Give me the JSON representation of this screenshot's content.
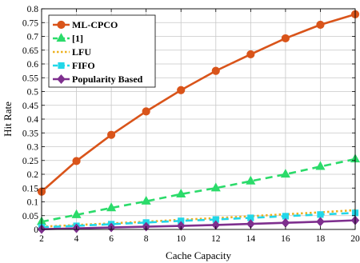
{
  "chart_data": {
    "type": "line",
    "xlabel": "Cache Capacity",
    "ylabel": "Hit Rate",
    "x": [
      2,
      4,
      6,
      8,
      10,
      12,
      14,
      16,
      18,
      20
    ],
    "xlim": [
      2,
      20
    ],
    "ylim": [
      0,
      0.8
    ],
    "xticks": [
      "2",
      "4",
      "6",
      "8",
      "10",
      "12",
      "14",
      "16",
      "18",
      "20"
    ],
    "yticks": [
      "0",
      "0.05",
      "0.1",
      "0.15",
      "0.2",
      "0.25",
      "0.3",
      "0.35",
      "0.4",
      "0.45",
      "0.5",
      "0.55",
      "0.6",
      "0.65",
      "0.7",
      "0.75",
      "0.8"
    ],
    "grid": true,
    "legend_position": "top-left",
    "series": [
      {
        "name": "ML-CPCO",
        "color": "#D9541A",
        "dash": "solid",
        "marker": "circle",
        "values": [
          0.137,
          0.248,
          0.343,
          0.428,
          0.505,
          0.575,
          0.635,
          0.693,
          0.742,
          0.78
        ]
      },
      {
        "name": "[1]",
        "color": "#2BDB6A",
        "dash": "dashed",
        "marker": "triangle",
        "values": [
          0.028,
          0.053,
          0.078,
          0.102,
          0.128,
          0.15,
          0.175,
          0.2,
          0.228,
          0.255
        ]
      },
      {
        "name": "LFU",
        "color": "#EDB120",
        "dash": "dotted",
        "marker": "none",
        "values": [
          0.01,
          0.016,
          0.022,
          0.028,
          0.035,
          0.041,
          0.048,
          0.055,
          0.062,
          0.07
        ]
      },
      {
        "name": "FIFO",
        "color": "#22D7E8",
        "dash": "dashed",
        "marker": "square",
        "values": [
          0.008,
          0.013,
          0.019,
          0.025,
          0.031,
          0.036,
          0.042,
          0.048,
          0.054,
          0.06
        ]
      },
      {
        "name": "Popularity Based",
        "color": "#7E2F8E",
        "dash": "solid",
        "marker": "diamond",
        "values": [
          0.001,
          0.004,
          0.007,
          0.01,
          0.013,
          0.016,
          0.02,
          0.024,
          0.028,
          0.033
        ]
      }
    ]
  }
}
